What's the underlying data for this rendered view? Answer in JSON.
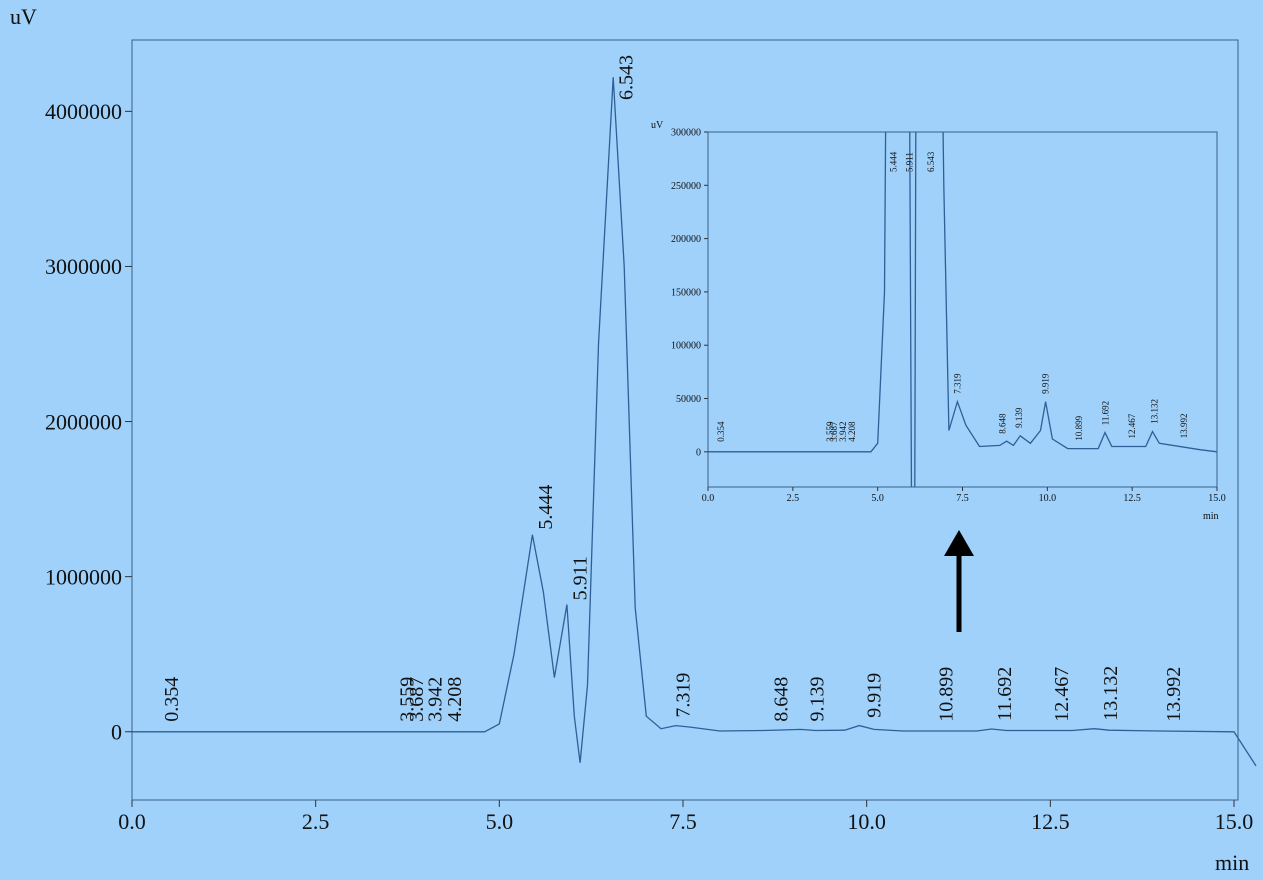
{
  "chart_data": [
    {
      "type": "line",
      "x_label": "min",
      "y_label": "uV",
      "xlim": [
        0,
        15
      ],
      "ylim": [
        -440000,
        4460000
      ],
      "xticks": [
        {
          "value": 0,
          "label": "0.0"
        },
        2.5,
        {
          "value": 5,
          "label": "5.0"
        },
        7.5,
        {
          "value": 10,
          "label": "10.0"
        },
        12.5,
        {
          "value": 15,
          "label": "15.0"
        }
      ],
      "yticks": [
        0,
        1000000,
        2000000,
        3000000,
        4000000
      ],
      "series": [
        {
          "color": "#2f5f96",
          "x": [
            0,
            4.8,
            5.0,
            5.2,
            5.45,
            5.6,
            5.75,
            5.92,
            6.02,
            6.1,
            6.2,
            6.35,
            6.55,
            6.7,
            6.85,
            7.0,
            7.2,
            7.4,
            7.6,
            8.0,
            8.6,
            8.9,
            9.1,
            9.3,
            9.7,
            9.9,
            10.1,
            10.5,
            11.5,
            11.7,
            11.9,
            12.8,
            13.1,
            13.3,
            14.0,
            15.0,
            15.3
          ],
          "values": [
            0,
            0,
            50000,
            500000,
            1270000,
            900000,
            350000,
            820000,
            100000,
            -200000,
            300000,
            2500000,
            4220000,
            3000000,
            800000,
            100000,
            20000,
            40000,
            30000,
            5000,
            8000,
            12000,
            15000,
            8000,
            10000,
            40000,
            15000,
            5000,
            5000,
            18000,
            8000,
            8000,
            20000,
            10000,
            5000,
            0,
            -220000
          ]
        }
      ],
      "peaks": [
        0.354,
        3.559,
        3.687,
        3.942,
        4.208,
        5.444,
        5.911,
        6.543,
        7.319,
        8.648,
        9.139,
        9.919,
        10.899,
        11.692,
        12.467,
        13.132,
        13.992
      ]
    },
    {
      "type": "line",
      "x_label": "min",
      "y_label": "uV",
      "xlim": [
        0,
        15
      ],
      "ylim": [
        -33000,
        300000
      ],
      "xticks": [
        {
          "value": 0,
          "label": "0.0"
        },
        2.5,
        {
          "value": 5,
          "label": "5.0"
        },
        7.5,
        {
          "value": 10,
          "label": "10.0"
        },
        12.5,
        {
          "value": 15,
          "label": "15.0"
        }
      ],
      "yticks": [
        0,
        50000,
        100000,
        150000,
        200000,
        250000,
        300000
      ],
      "series": [
        {
          "color": "#2f5f96",
          "x": [
            0,
            4.8,
            5.0,
            5.2,
            5.3,
            5.9,
            6.02,
            6.08,
            6.15,
            6.8,
            6.95,
            7.1,
            7.35,
            7.6,
            8.0,
            8.6,
            8.8,
            9.0,
            9.2,
            9.5,
            9.8,
            9.95,
            10.15,
            10.6,
            11.5,
            11.7,
            11.9,
            12.9,
            13.1,
            13.3,
            14.5,
            15.0,
            15.3
          ],
          "values": [
            0,
            0,
            8000,
            150000,
            600000,
            600000,
            -200000,
            -200000,
            600000,
            600000,
            250000,
            20000,
            47000,
            25000,
            5000,
            6000,
            10000,
            6000,
            15000,
            8000,
            20000,
            47000,
            12000,
            3000,
            3000,
            18000,
            5000,
            5000,
            19000,
            8000,
            2000,
            0,
            -30000
          ]
        }
      ],
      "peaks": [
        0.354,
        3.559,
        3.687,
        3.942,
        4.208,
        5.444,
        5.911,
        6.543,
        7.319,
        8.648,
        9.139,
        9.919,
        10.899,
        11.692,
        12.467,
        13.132,
        13.992
      ]
    }
  ]
}
